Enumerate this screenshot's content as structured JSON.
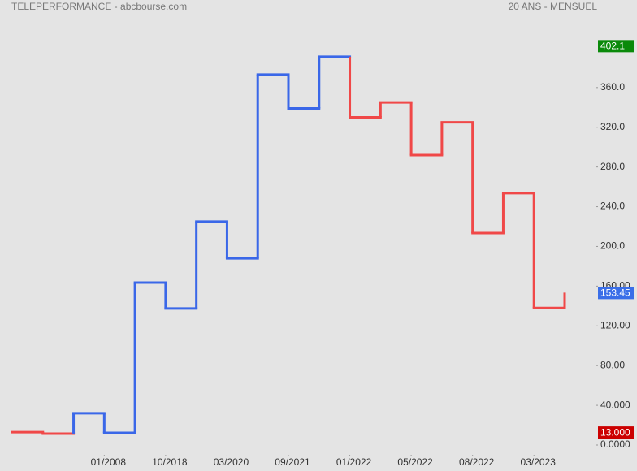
{
  "chart_data": {
    "type": "step",
    "title": "TELEPERFORMANCE - abcbourse.com",
    "subtitle": "20 ANS - MENSUEL",
    "values": [
      13,
      11.5,
      32,
      12.3,
      163.6,
      137.5,
      225,
      188,
      373,
      339,
      391,
      330,
      345,
      292,
      325,
      213.5,
      253.6,
      138
    ],
    "colors": [
      "#f04848",
      "#f04848",
      "#3a67e8",
      "#3a67e8",
      "#3a67e8",
      "#3a67e8",
      "#3a67e8",
      "#3a67e8",
      "#3a67e8",
      "#3a67e8",
      "#3a67e8",
      "#f04848",
      "#f04848",
      "#f04848",
      "#f04848",
      "#f04848",
      "#f04848",
      "#f04848"
    ],
    "ylim": [
      0,
      440
    ],
    "yticks": [
      {
        "value": 0,
        "label": "0.0000"
      },
      {
        "value": 40,
        "label": "40.000"
      },
      {
        "value": 80,
        "label": "80.00"
      },
      {
        "value": 120,
        "label": "120.00"
      },
      {
        "value": 160,
        "label": "160.00"
      },
      {
        "value": 200,
        "label": "200.0"
      },
      {
        "value": 240,
        "label": "240.0"
      },
      {
        "value": 280,
        "label": "280.0"
      },
      {
        "value": 320,
        "label": "320.0"
      },
      {
        "value": 360,
        "label": "360.0"
      }
    ],
    "xticks": [
      {
        "value": 3,
        "label": "01/2008"
      },
      {
        "value": 5,
        "label": "10/2018"
      },
      {
        "value": 7,
        "label": "03/2020"
      },
      {
        "value": 9,
        "label": "09/2021"
      },
      {
        "value": 11,
        "label": "01/2022"
      },
      {
        "value": 13,
        "label": "05/2022"
      },
      {
        "value": 15,
        "label": "08/2022"
      },
      {
        "value": 17,
        "label": "03/2023"
      }
    ],
    "badges": [
      {
        "value": 402.1,
        "color": "#0a8a0a"
      },
      {
        "value": 153.45,
        "color": "#3a6ee8"
      },
      {
        "value": 13,
        "label": "13.000",
        "color": "#cc0000"
      }
    ]
  }
}
